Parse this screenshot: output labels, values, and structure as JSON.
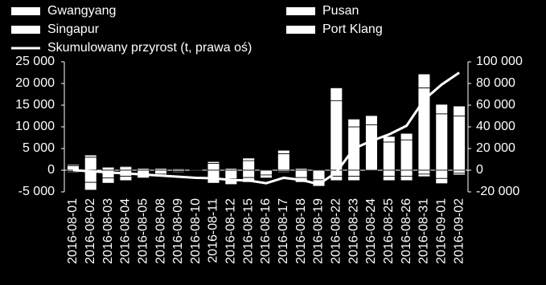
{
  "chart_data": {
    "type": "bar",
    "categories": [
      "2016-08-01",
      "2016-08-02",
      "2016-08-03",
      "2016-08-04",
      "2016-08-05",
      "2016-08-08",
      "2016-08-09",
      "2016-08-10",
      "2016-08-11",
      "2016-08-12",
      "2016-08-15",
      "2016-08-16",
      "2016-08-17",
      "2016-08-18",
      "2016-08-19",
      "2016-08-22",
      "2016-08-23",
      "2016-08-24",
      "2016-08-25",
      "2016-08-26",
      "2016-08-31",
      "2016-09-01",
      "2016-09-02"
    ],
    "series": [
      {
        "name": "Gwangyang",
        "color": "#ffffff",
        "values": [
          1000,
          3000,
          700,
          800,
          400,
          400,
          300,
          0,
          1600,
          400,
          2200,
          0,
          3800,
          400,
          0,
          16000,
          10000,
          10500,
          6500,
          7000,
          19000,
          13000,
          12500
        ]
      },
      {
        "name": "Pusan",
        "color": "#ffffff",
        "values": [
          -300,
          -2800,
          -1800,
          -1400,
          -1100,
          -900,
          -300,
          -200,
          -1800,
          -2000,
          -1700,
          -1100,
          -300,
          -1700,
          -2200,
          -1400,
          -1400,
          0,
          -1400,
          -1400,
          -900,
          -1900,
          -700
        ]
      },
      {
        "name": "Singapur",
        "color": "#ffffff",
        "values": [
          -200,
          -1800,
          -1200,
          -1000,
          -700,
          -600,
          -200,
          -100,
          -1200,
          -1300,
          -1100,
          -700,
          -200,
          -1100,
          -1500,
          -1000,
          -1000,
          0,
          -1000,
          -1000,
          -600,
          -1200,
          -400
        ]
      },
      {
        "name": "Port Klang",
        "color": "#ffffff",
        "values": [
          300,
          500,
          0,
          200,
          0,
          0,
          0,
          0,
          400,
          0,
          600,
          0,
          800,
          0,
          0,
          3000,
          1800,
          2100,
          1300,
          1500,
          3200,
          2200,
          2300
        ]
      },
      {
        "name": "Skumulowany przyrost (t, prawa oś)",
        "color": "#ffffff",
        "type": "line",
        "axis": "y2",
        "values": [
          0,
          -1000,
          -2000,
          -3000,
          -4000,
          -5000,
          -6000,
          -7000,
          -7500,
          -9000,
          -9500,
          -12000,
          -7000,
          -9000,
          -13000,
          -2000,
          20000,
          27000,
          33000,
          41000,
          65000,
          79000,
          90000
        ]
      }
    ],
    "ylim": [
      -5000,
      25000
    ],
    "yticks": [
      {
        "value": -5000,
        "label": "-5 000"
      },
      0,
      {
        "value": 5000,
        "label": "5 000"
      },
      {
        "value": 10000,
        "label": "10 000"
      },
      {
        "value": 15000,
        "label": "15 000"
      },
      {
        "value": 20000,
        "label": "20 000"
      },
      {
        "value": 25000,
        "label": "25 000"
      }
    ],
    "y2lim": [
      -20000,
      100000
    ],
    "y2ticks": [
      {
        "value": -20000,
        "label": "-20 000"
      },
      0,
      {
        "value": 20000,
        "label": "20 000"
      },
      {
        "value": 40000,
        "label": "40 000"
      },
      {
        "value": 60000,
        "label": "60 000"
      },
      {
        "value": 80000,
        "label": "80 000"
      },
      {
        "value": 100000,
        "label": "100 000"
      }
    ],
    "legend": "top"
  }
}
